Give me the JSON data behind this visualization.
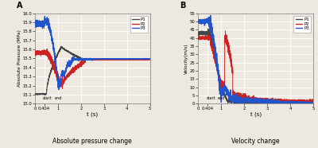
{
  "panel_A": {
    "label": "A",
    "title": "Absolute pressure change",
    "ylabel": "Absolute Pressure (MPa)",
    "xlabel": "t (s)",
    "ylim": [
      15.0,
      16.0
    ],
    "xlim": [
      0,
      5
    ],
    "yticks": [
      15.0,
      15.1,
      15.2,
      15.3,
      15.4,
      15.5,
      15.6,
      15.7,
      15.8,
      15.9,
      16.0
    ],
    "xticks": [
      0,
      0.404,
      1,
      2,
      3,
      4,
      5
    ],
    "xtick_labels": [
      "0",
      "0.404",
      "1",
      "2",
      "3",
      "4",
      "5"
    ],
    "start_x": 0.55,
    "end_x": 1.0,
    "lines": {
      "P1": {
        "color": "#444444",
        "lw": 0.7
      },
      "P2": {
        "color": "#cc2222",
        "lw": 0.7
      },
      "P3": {
        "color": "#2255cc",
        "lw": 0.7
      }
    }
  },
  "panel_B": {
    "label": "B",
    "title": "Velocity change",
    "ylabel": "Velocity(m/s)",
    "xlabel": "t (s)",
    "ylim": [
      0,
      55
    ],
    "xlim": [
      0,
      5
    ],
    "yticks": [
      0,
      5,
      10,
      15,
      20,
      25,
      30,
      35,
      40,
      45,
      50,
      55
    ],
    "xticks": [
      0,
      0.404,
      1,
      2,
      3,
      4,
      5
    ],
    "xtick_labels": [
      "0",
      "0.404",
      "1",
      "2",
      "3",
      "4",
      "5"
    ],
    "start_x": 0.55,
    "end_x": 1.0,
    "lines": {
      "P1": {
        "color": "#444444",
        "lw": 0.7
      },
      "P2": {
        "color": "#cc2222",
        "lw": 0.7
      },
      "P3": {
        "color": "#2255cc",
        "lw": 0.7
      }
    }
  },
  "bg_color": "#ede8e0",
  "grid_color": "#ffffff",
  "fig_bg": "#ede8e0"
}
